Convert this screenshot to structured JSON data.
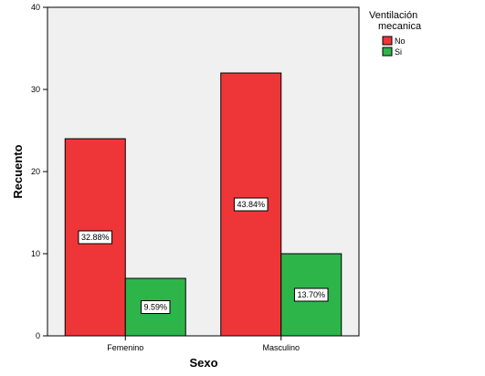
{
  "chart_data": {
    "type": "bar",
    "categories": [
      "Femenino",
      "Masculino"
    ],
    "series": [
      {
        "name": "No",
        "color": "#ee3639",
        "values": [
          24,
          32
        ],
        "labels": [
          "32.88%",
          "43.84%"
        ]
      },
      {
        "name": "Si",
        "color": "#2db54a",
        "values": [
          7,
          10
        ],
        "labels": [
          "9.59%",
          "13.70%"
        ]
      }
    ],
    "xlabel": "Sexo",
    "ylabel": "Recuento",
    "ylim": [
      0,
      40
    ],
    "yticks": [
      0,
      10,
      20,
      30,
      40
    ],
    "legend": {
      "title": [
        "Ventilación",
        "mecanica"
      ],
      "placement": "top-right"
    },
    "plot_background": "#f0f0f0",
    "grid": false
  }
}
